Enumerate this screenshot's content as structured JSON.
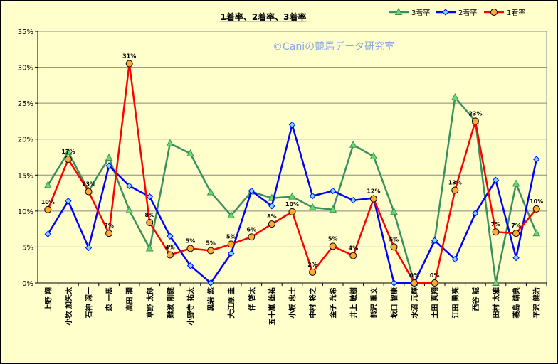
{
  "chart_data": {
    "type": "line",
    "title": "1着率、2着率、3着率",
    "watermark": "©Caniの競馬データ研究室",
    "ylim": [
      0,
      35
    ],
    "y_ticks": [
      "0%",
      "5%",
      "10%",
      "15%",
      "20%",
      "25%",
      "30%",
      "35%"
    ],
    "grid": true,
    "legend_position": "top-right",
    "categories": [
      "上野 翔",
      "小牧 加矢太",
      "石神 深一",
      "森 一馬",
      "高田 潤",
      "草野 太郎",
      "難波 剛健",
      "小野寺 祐太",
      "黒岩 悠",
      "大江原 圭",
      "伴 啓太",
      "五十嵐 雄祐",
      "小坂 忠士",
      "中村 将之",
      "金子 光希",
      "井上 敏樹",
      "熊沢 重文",
      "坂口 智康",
      "水沼 元輝",
      "土田 真翔",
      "江田 勇亮",
      "西谷 誠",
      "田村 太雅",
      "蓑島 靖典",
      "平沢 健治"
    ],
    "series": [
      {
        "name": "3着率",
        "color": "#3a8f5f",
        "marker": "triangle",
        "marker_fill": "#66dd66",
        "values": [
          13.6,
          18.2,
          12.8,
          17.4,
          10.1,
          4.8,
          19.4,
          18.0,
          12.6,
          9.4,
          12.7,
          11.8,
          12.0,
          10.5,
          10.2,
          19.2,
          17.6,
          9.9,
          0,
          5.9,
          25.8,
          22.5,
          0,
          13.8,
          6.9
        ]
      },
      {
        "name": "2着率",
        "color": "#0000ff",
        "marker": "diamond",
        "marker_fill": "#77ddff",
        "values": [
          6.8,
          11.4,
          4.9,
          16.3,
          13.5,
          12.0,
          6.5,
          2.4,
          0,
          4.1,
          12.8,
          10.7,
          22.0,
          12.1,
          12.8,
          11.5,
          11.8,
          0,
          0,
          5.9,
          3.3,
          9.7,
          14.3,
          3.5,
          17.2
        ]
      },
      {
        "name": "1着率",
        "color": "#ff0000",
        "marker": "circle",
        "marker_fill": "#ffaa33",
        "values": [
          10.2,
          17.2,
          12.7,
          6.9,
          30.5,
          8.4,
          3.9,
          4.8,
          4.5,
          5.4,
          6.4,
          8.2,
          9.9,
          1.5,
          5.1,
          3.8,
          11.7,
          5.0,
          0,
          0,
          12.9,
          22.5,
          7.1,
          6.9,
          10.3
        ],
        "data_labels": [
          "10%",
          "17%",
          "13%",
          "7%",
          "31%",
          "8%",
          "4%",
          "5%",
          "5%",
          "5%",
          "6%",
          "8%",
          "10%",
          "2%",
          "5%",
          "4%",
          "12%",
          "5%",
          "0%",
          "0%",
          "13%",
          "23%",
          "7%",
          "7%",
          "10%"
        ]
      }
    ]
  }
}
